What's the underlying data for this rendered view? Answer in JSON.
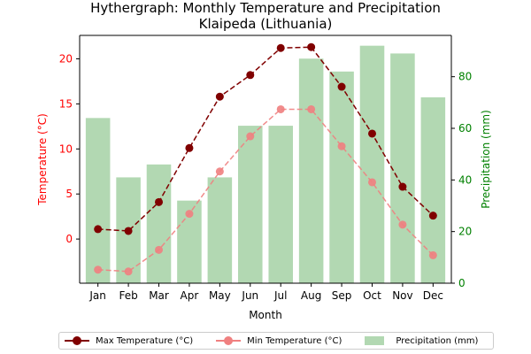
{
  "title_line1": "Hythergraph: Monthly Temperature and Precipitation",
  "title_line2": "Klaipeda (Lithuania)",
  "colors": {
    "max_line": "#800000",
    "min_line": "#f08080",
    "bar": "#b2d8b2",
    "left_axis_label": "#ff0000",
    "right_axis_label": "#008000"
  },
  "chart_data": {
    "type": "bar",
    "categories": [
      "Jan",
      "Feb",
      "Mar",
      "Apr",
      "May",
      "Jun",
      "Jul",
      "Aug",
      "Sep",
      "Oct",
      "Nov",
      "Dec"
    ],
    "xlabel": "Month",
    "ylabel_left": "Temperature (°C)",
    "ylabel_right": "Precipitation (mm)",
    "ylim_left": [
      -4.9,
      22.6
    ],
    "ylim_right": [
      0,
      96
    ],
    "yticks_left": [
      0,
      5,
      10,
      15,
      20
    ],
    "yticks_right": [
      0,
      20,
      40,
      60,
      80
    ],
    "series": [
      {
        "name": "Max Temperature (°C)",
        "type": "line",
        "axis": "left",
        "values": [
          1.1,
          0.9,
          4.1,
          10.1,
          15.8,
          18.2,
          21.2,
          21.3,
          16.9,
          11.7,
          5.8,
          2.6
        ]
      },
      {
        "name": "Min Temperature (°C)",
        "type": "line",
        "axis": "left",
        "values": [
          -3.4,
          -3.6,
          -1.2,
          2.8,
          7.5,
          11.4,
          14.4,
          14.4,
          10.3,
          6.3,
          1.6,
          -1.8
        ]
      },
      {
        "name": "Precipitation (mm)",
        "type": "bar",
        "axis": "right",
        "values": [
          64,
          41,
          46,
          32,
          41,
          61,
          61,
          87,
          82,
          92,
          89,
          72
        ]
      }
    ],
    "legend_position": "bottom-center",
    "grid": false
  }
}
